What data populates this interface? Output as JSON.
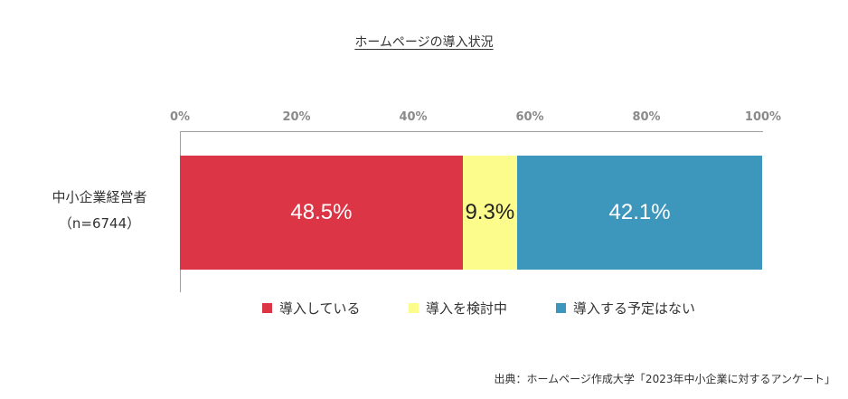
{
  "chart_data": {
    "type": "bar",
    "orientation": "horizontal-stacked",
    "title": "ホームページの導入状況",
    "categories": [
      {
        "name": "中小企業経営者",
        "sample": "（n=6744）"
      }
    ],
    "series": [
      {
        "name": "導入している",
        "values": [
          48.5
        ],
        "label": "48.5%",
        "color": "#dc3545",
        "text_color": "#ffffff"
      },
      {
        "name": "導入を検討中",
        "values": [
          9.3
        ],
        "label": "9.3%",
        "color": "#fcfc8c",
        "text_color": "#222222"
      },
      {
        "name": "導入する予定はない",
        "values": [
          42.1
        ],
        "label": "42.1%",
        "color": "#3d96bb",
        "text_color": "#ffffff"
      }
    ],
    "x_ticks": [
      "0%",
      "20%",
      "40%",
      "60%",
      "80%",
      "100%"
    ],
    "xlim": [
      0,
      100
    ],
    "grid": false,
    "legend_position": "bottom"
  },
  "source": "出典：ホームページ作成大学「2023年中小企業に対するアンケート」"
}
